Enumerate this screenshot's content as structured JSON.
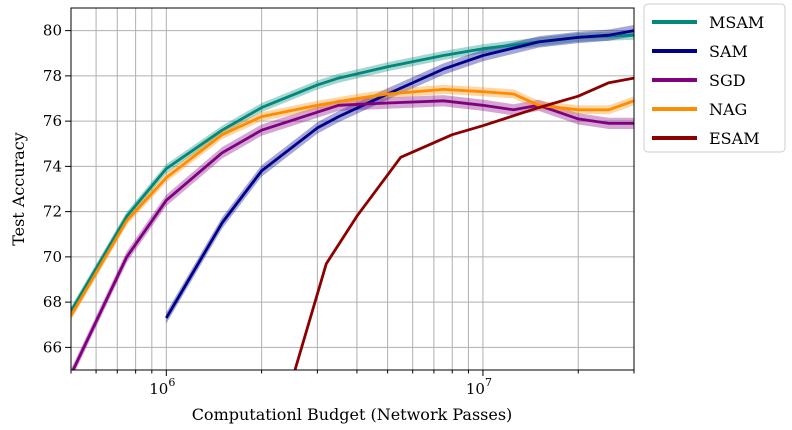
{
  "chart_data": {
    "type": "line",
    "title": "",
    "xlabel": "Computationl Budget (Network Passes)",
    "ylabel": "Test Accuracy",
    "xscale": "log",
    "xlim": [
      500000,
      30000000
    ],
    "ylim": [
      65,
      81
    ],
    "x_major_ticks": [
      {
        "value": 1000000,
        "base": "10",
        "exp": "6"
      },
      {
        "value": 10000000,
        "base": "10",
        "exp": "7"
      }
    ],
    "y_ticks": [
      66,
      68,
      70,
      72,
      74,
      76,
      78,
      80
    ],
    "grid": true,
    "legend_position": "outside-top-right",
    "series": [
      {
        "name": "MSAM",
        "color": "#00897B",
        "x": [
          500000,
          750000,
          1000000,
          1500000,
          2000000,
          3000000,
          3500000,
          5000000,
          7500000,
          10000000,
          15000000,
          20000000,
          30000000
        ],
        "y": [
          67.6,
          71.8,
          73.9,
          75.6,
          76.6,
          77.6,
          77.9,
          78.4,
          78.9,
          79.2,
          79.5,
          79.7,
          79.8
        ],
        "band": 0.2
      },
      {
        "name": "SAM",
        "color": "#00008B",
        "x": [
          1000000,
          1500000,
          2000000,
          3000000,
          3500000,
          5000000,
          7500000,
          10000000,
          15000000,
          20000000,
          25000000,
          30000000
        ],
        "y": [
          67.3,
          71.5,
          73.8,
          75.7,
          76.2,
          77.2,
          78.3,
          78.9,
          79.5,
          79.7,
          79.8,
          80.0
        ],
        "band": 0.25
      },
      {
        "name": "SGD",
        "color": "#800080",
        "x": [
          500000,
          750000,
          1000000,
          1500000,
          2000000,
          3500000,
          5000000,
          7500000,
          10000000,
          12500000,
          15000000,
          20000000,
          25000000,
          30000000
        ],
        "y": [
          64.8,
          70.0,
          72.5,
          74.6,
          75.6,
          76.7,
          76.8,
          76.9,
          76.7,
          76.5,
          76.7,
          76.1,
          75.9,
          75.9
        ],
        "band": 0.25
      },
      {
        "name": "NAG",
        "color": "#FF8C00",
        "x": [
          500000,
          750000,
          1000000,
          1500000,
          2000000,
          3000000,
          4000000,
          5000000,
          7500000,
          10000000,
          12500000,
          15000000,
          20000000,
          25000000,
          30000000
        ],
        "y": [
          67.4,
          71.6,
          73.5,
          75.4,
          76.2,
          76.7,
          77.0,
          77.2,
          77.4,
          77.3,
          77.2,
          76.7,
          76.5,
          76.5,
          76.9
        ],
        "band": 0.2
      },
      {
        "name": "ESAM",
        "color": "#8B0000",
        "x": [
          2500000,
          3200000,
          4000000,
          5500000,
          8000000,
          10000000,
          15000000,
          20000000,
          25000000,
          30000000
        ],
        "y": [
          64.6,
          69.7,
          71.8,
          74.4,
          75.4,
          75.8,
          76.6,
          77.1,
          77.7,
          77.9
        ],
        "band": 0.05
      }
    ]
  }
}
